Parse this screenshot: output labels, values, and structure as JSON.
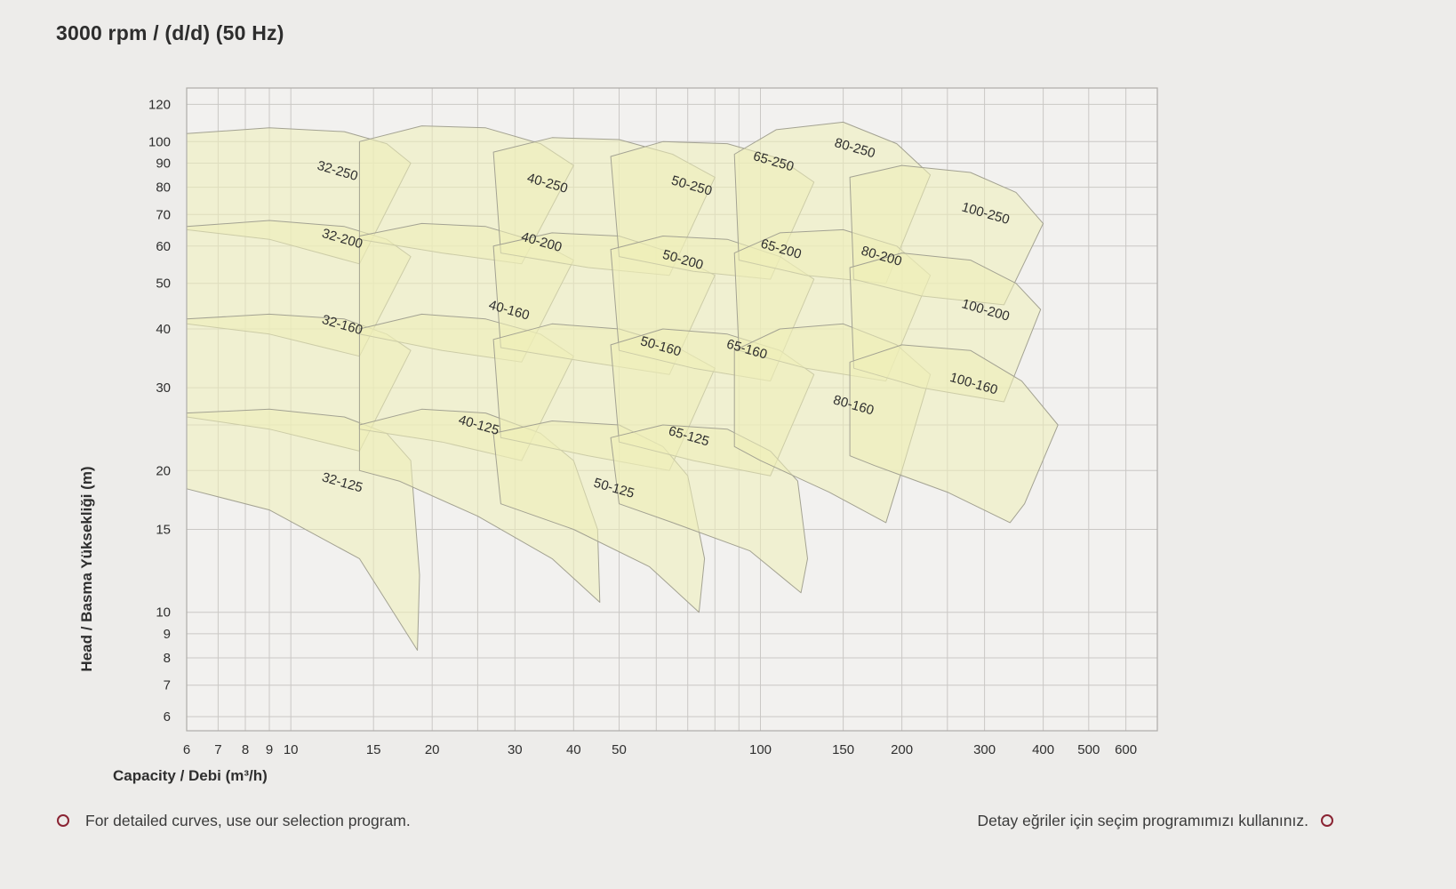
{
  "header": {
    "title": "3000 rpm / (d/d) (50 Hz)"
  },
  "footer": {
    "left_note": "For detailed curves, use our selection program.",
    "right_note": "Detay eğriler için seçim programımızı kullanınız.",
    "bullet_color": "#8a2433"
  },
  "chart_data": {
    "type": "area",
    "title": "3000 rpm / (d/d) (50 Hz)",
    "xlabel": "Capacity / Debi (m³/h)",
    "ylabel": "Head / Basma Yüksekliği (m)",
    "x_scale": "log",
    "y_scale": "log",
    "xlim": [
      6,
      700
    ],
    "ylim": [
      5.6,
      130
    ],
    "x_ticks": [
      6,
      7,
      8,
      9,
      10,
      15,
      20,
      30,
      40,
      50,
      100,
      150,
      200,
      300,
      400,
      500,
      600
    ],
    "y_ticks": [
      6,
      7,
      8,
      9,
      10,
      15,
      20,
      30,
      40,
      50,
      60,
      70,
      80,
      90,
      100,
      120
    ],
    "x_gridlines": [
      6,
      7,
      8,
      9,
      10,
      15,
      20,
      25,
      30,
      40,
      50,
      60,
      70,
      80,
      90,
      100,
      150,
      200,
      250,
      300,
      400,
      500,
      600,
      700
    ],
    "y_gridlines": [
      6,
      7,
      8,
      9,
      10,
      15,
      20,
      25,
      30,
      40,
      50,
      60,
      70,
      80,
      90,
      100,
      120
    ],
    "grid_on": true,
    "legend": "none",
    "colors": {
      "plot_bg": "#f2f1ef",
      "grid": "#cac8c5",
      "frame": "#aeaca9",
      "region_fill": "#eeeeb8",
      "region_stroke": "#a3a292",
      "text": "#2f2f2f"
    },
    "label_angle_deg": 16,
    "regions": [
      {
        "label": "32-250",
        "label_at": [
          12.5,
          85
        ],
        "points": [
          [
            6,
            104
          ],
          [
            9,
            107
          ],
          [
            13,
            105
          ],
          [
            16,
            99
          ],
          [
            18,
            90
          ],
          [
            14,
            55
          ],
          [
            9,
            62
          ],
          [
            6,
            65
          ]
        ]
      },
      {
        "label": "32-200",
        "label_at": [
          12.8,
          61
        ],
        "points": [
          [
            6,
            66
          ],
          [
            9,
            68
          ],
          [
            13,
            66
          ],
          [
            16,
            62
          ],
          [
            18,
            57
          ],
          [
            14,
            35
          ],
          [
            9,
            39
          ],
          [
            6,
            41
          ]
        ]
      },
      {
        "label": "32-160",
        "label_at": [
          12.8,
          40
        ],
        "points": [
          [
            6,
            42
          ],
          [
            9,
            43
          ],
          [
            13,
            42
          ],
          [
            16,
            39
          ],
          [
            18,
            36
          ],
          [
            14,
            22
          ],
          [
            9,
            24.5
          ],
          [
            6,
            26
          ]
        ]
      },
      {
        "label": "32-125",
        "label_at": [
          12.8,
          18.5
        ],
        "points": [
          [
            6,
            26.5
          ],
          [
            9,
            27
          ],
          [
            13,
            26
          ],
          [
            16,
            24
          ],
          [
            18,
            21
          ],
          [
            18.8,
            12
          ],
          [
            18.6,
            8.3
          ],
          [
            14,
            13
          ],
          [
            9,
            16.5
          ],
          [
            6,
            18.3
          ]
        ]
      },
      {
        "label": "40-250",
        "label_at": [
          35,
          80
        ],
        "points": [
          [
            14,
            100
          ],
          [
            19,
            108
          ],
          [
            26,
            107
          ],
          [
            34,
            99
          ],
          [
            40,
            89
          ],
          [
            31,
            55
          ],
          [
            21,
            58
          ],
          [
            14,
            62
          ]
        ]
      },
      {
        "label": "40-200",
        "label_at": [
          34,
          60
        ],
        "points": [
          [
            14,
            63
          ],
          [
            19,
            67
          ],
          [
            26,
            66
          ],
          [
            34,
            61
          ],
          [
            40,
            56
          ],
          [
            31,
            34
          ],
          [
            21,
            36
          ],
          [
            14,
            39
          ]
        ]
      },
      {
        "label": "40-160",
        "label_at": [
          29,
          43
        ],
        "points": [
          [
            14,
            40
          ],
          [
            19,
            43
          ],
          [
            26,
            42
          ],
          [
            34,
            39
          ],
          [
            40,
            35
          ],
          [
            31,
            21
          ],
          [
            21,
            23
          ],
          [
            14,
            24.5
          ]
        ]
      },
      {
        "label": "40-125",
        "label_at": [
          25,
          24.5
        ],
        "points": [
          [
            14,
            25
          ],
          [
            19,
            27
          ],
          [
            26,
            26.5
          ],
          [
            34,
            24
          ],
          [
            40,
            21
          ],
          [
            45,
            15
          ],
          [
            45.5,
            10.5
          ],
          [
            36,
            13
          ],
          [
            25,
            16
          ],
          [
            17,
            19
          ],
          [
            14,
            20
          ]
        ]
      },
      {
        "label": "50-250",
        "label_at": [
          71,
          79
        ],
        "points": [
          [
            27,
            95
          ],
          [
            36,
            102
          ],
          [
            50,
            101
          ],
          [
            65,
            94
          ],
          [
            80,
            84
          ],
          [
            64,
            52
          ],
          [
            43,
            54
          ],
          [
            28,
            58
          ]
        ]
      },
      {
        "label": "50-200",
        "label_at": [
          68,
          55
        ],
        "points": [
          [
            27,
            60
          ],
          [
            36,
            64
          ],
          [
            50,
            63
          ],
          [
            65,
            58
          ],
          [
            80,
            52
          ],
          [
            64,
            32
          ],
          [
            43,
            34
          ],
          [
            28,
            36.5
          ]
        ]
      },
      {
        "label": "50-160",
        "label_at": [
          61,
          36
        ],
        "points": [
          [
            27,
            38
          ],
          [
            36,
            41
          ],
          [
            50,
            40
          ],
          [
            65,
            37
          ],
          [
            80,
            33
          ],
          [
            64,
            20
          ],
          [
            43,
            21.5
          ],
          [
            28,
            23.5
          ]
        ]
      },
      {
        "label": "50-125",
        "label_at": [
          48.5,
          18
        ],
        "points": [
          [
            27,
            24
          ],
          [
            36,
            25.5
          ],
          [
            50,
            25
          ],
          [
            62,
            22.5
          ],
          [
            70,
            19.5
          ],
          [
            76,
            13
          ],
          [
            74,
            10
          ],
          [
            58,
            12.5
          ],
          [
            40,
            15
          ],
          [
            28,
            17
          ]
        ]
      },
      {
        "label": "65-250",
        "label_at": [
          106,
          89
        ],
        "points": [
          [
            48,
            93
          ],
          [
            62,
            100
          ],
          [
            85,
            99
          ],
          [
            110,
            92
          ],
          [
            130,
            82
          ],
          [
            105,
            51
          ],
          [
            72,
            53
          ],
          [
            50,
            57
          ]
        ]
      },
      {
        "label": "65-200",
        "label_at": [
          110,
          58
        ],
        "points": [
          [
            48,
            59
          ],
          [
            62,
            63
          ],
          [
            85,
            62
          ],
          [
            110,
            57
          ],
          [
            130,
            51
          ],
          [
            105,
            31
          ],
          [
            72,
            33
          ],
          [
            50,
            36
          ]
        ]
      },
      {
        "label": "65-160",
        "label_at": [
          93,
          35.5
        ],
        "points": [
          [
            48,
            37
          ],
          [
            62,
            40
          ],
          [
            85,
            39
          ],
          [
            110,
            36
          ],
          [
            130,
            32
          ],
          [
            105,
            19.5
          ],
          [
            72,
            21
          ],
          [
            50,
            23
          ]
        ]
      },
      {
        "label": "65-125",
        "label_at": [
          70,
          23.2
        ],
        "points": [
          [
            48,
            23.5
          ],
          [
            62,
            25
          ],
          [
            85,
            24.5
          ],
          [
            105,
            22
          ],
          [
            120,
            19
          ],
          [
            126,
            13
          ],
          [
            122,
            11
          ],
          [
            95,
            13.5
          ],
          [
            65,
            15.5
          ],
          [
            50,
            17
          ]
        ]
      },
      {
        "label": "80-250",
        "label_at": [
          158,
          95
        ],
        "points": [
          [
            88,
            94
          ],
          [
            108,
            106
          ],
          [
            150,
            110
          ],
          [
            195,
            99
          ],
          [
            230,
            85
          ],
          [
            185,
            50
          ],
          [
            125,
            52
          ],
          [
            90,
            56
          ]
        ]
      },
      {
        "label": "80-200",
        "label_at": [
          180,
          56
        ],
        "points": [
          [
            88,
            58
          ],
          [
            110,
            64
          ],
          [
            150,
            65
          ],
          [
            195,
            60
          ],
          [
            230,
            52
          ],
          [
            185,
            31
          ],
          [
            125,
            33
          ],
          [
            90,
            36
          ]
        ]
      },
      {
        "label": "80-160",
        "label_at": [
          157,
          27
        ],
        "points": [
          [
            88,
            36
          ],
          [
            110,
            40
          ],
          [
            150,
            41
          ],
          [
            195,
            37
          ],
          [
            230,
            32
          ],
          [
            200,
            20
          ],
          [
            185,
            15.5
          ],
          [
            140,
            18
          ],
          [
            100,
            21
          ],
          [
            88,
            22.5
          ]
        ]
      },
      {
        "label": "100-250",
        "label_at": [
          300,
          69
        ],
        "points": [
          [
            155,
            84
          ],
          [
            200,
            89
          ],
          [
            280,
            86
          ],
          [
            350,
            78
          ],
          [
            400,
            67
          ],
          [
            330,
            45
          ],
          [
            220,
            47
          ],
          [
            158,
            51
          ]
        ]
      },
      {
        "label": "100-200",
        "label_at": [
          300,
          43
        ],
        "points": [
          [
            155,
            54
          ],
          [
            200,
            58
          ],
          [
            280,
            56
          ],
          [
            350,
            50
          ],
          [
            395,
            44
          ],
          [
            330,
            28
          ],
          [
            220,
            30
          ],
          [
            158,
            33
          ]
        ]
      },
      {
        "label": "100-160",
        "label_at": [
          283,
          30
        ],
        "points": [
          [
            155,
            34
          ],
          [
            200,
            37
          ],
          [
            280,
            36
          ],
          [
            360,
            31
          ],
          [
            430,
            25
          ],
          [
            365,
            17
          ],
          [
            340,
            15.5
          ],
          [
            250,
            18
          ],
          [
            175,
            20.5
          ],
          [
            155,
            21.5
          ]
        ]
      }
    ]
  }
}
